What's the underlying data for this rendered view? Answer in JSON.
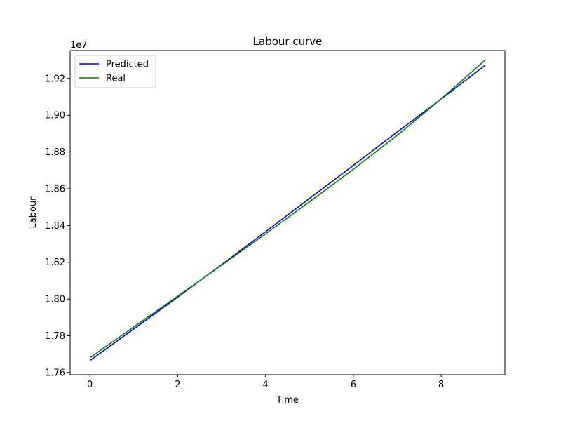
{
  "chart_data": {
    "type": "line",
    "title": "Labour curve",
    "xlabel": "Time",
    "ylabel": "Labour",
    "y_offset_label": "1e7",
    "xlim": [
      -0.45,
      9.45
    ],
    "ylim": [
      1.7588,
      1.9352
    ],
    "x_ticks": [
      0,
      2,
      4,
      6,
      8
    ],
    "y_ticks": [
      1.76,
      1.78,
      1.8,
      1.82,
      1.84,
      1.86,
      1.88,
      1.9,
      1.92
    ],
    "y_tick_labels": [
      "1.76",
      "1.78",
      "1.80",
      "1.82",
      "1.84",
      "1.86",
      "1.88",
      "1.90",
      "1.92"
    ],
    "legend_position": "top-left",
    "grid": false,
    "x": [
      0,
      1,
      2,
      3,
      4,
      5,
      6,
      7,
      8,
      9
    ],
    "series": [
      {
        "name": "Predicted",
        "color": "#0000cc",
        "values": [
          1.7665,
          1.7837,
          1.801,
          1.8187,
          1.8366,
          1.8547,
          1.8727,
          1.8909,
          1.9088,
          1.9272
        ]
      },
      {
        "name": "Real",
        "color": "#008000",
        "values": [
          1.768,
          1.7848,
          1.8015,
          1.8184,
          1.8354,
          1.8529,
          1.8706,
          1.8891,
          1.9089,
          1.93
        ]
      }
    ]
  }
}
